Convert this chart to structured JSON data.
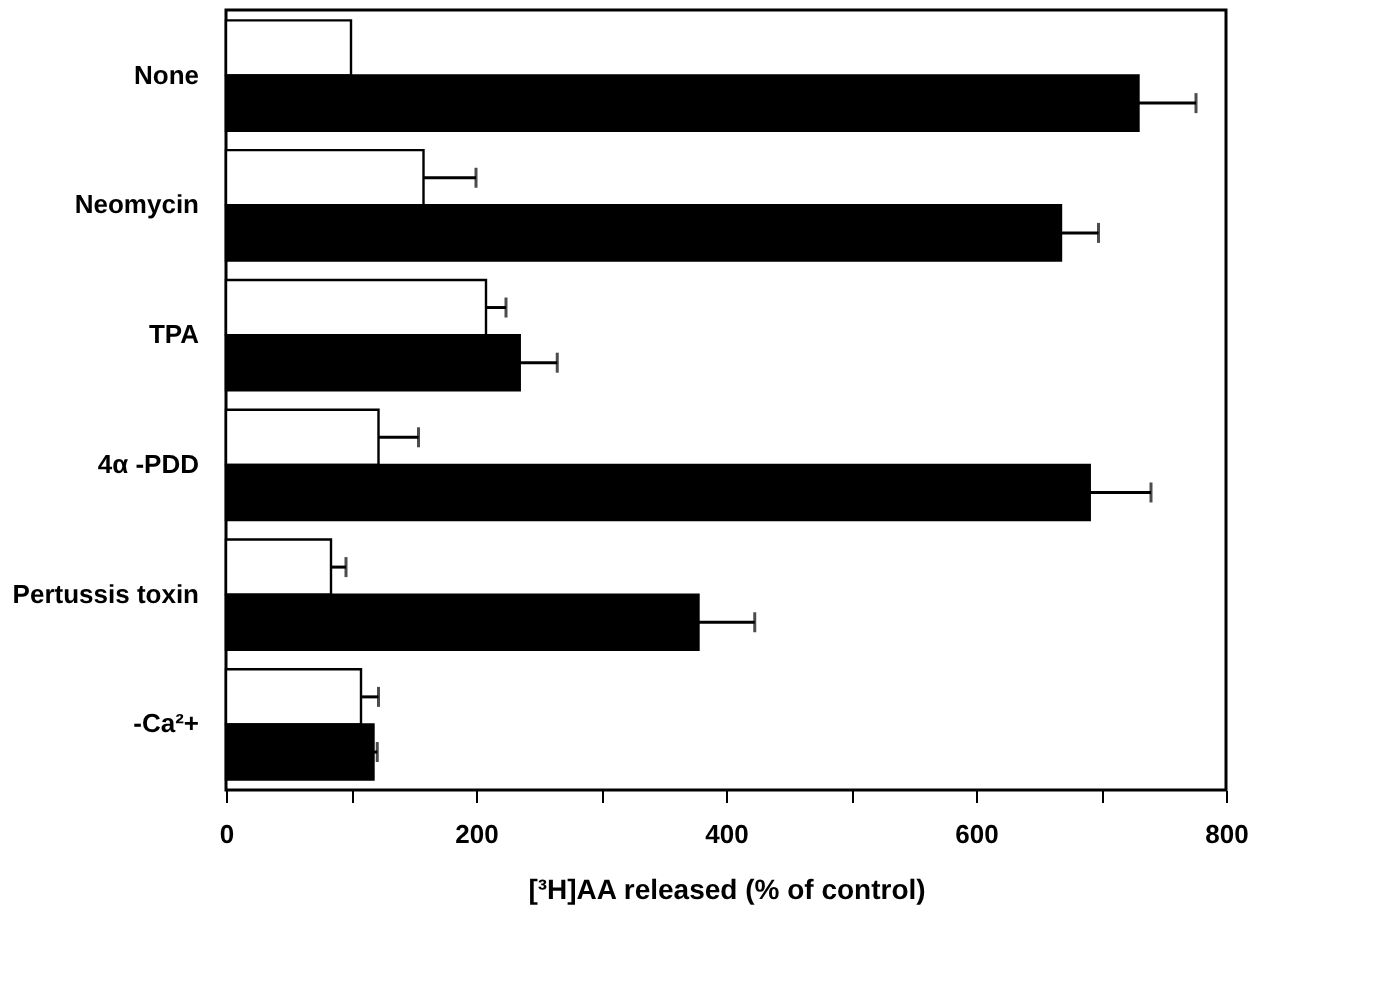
{
  "chart_data": {
    "type": "bar",
    "orientation": "horizontal",
    "categories": [
      "None",
      "Neomycin",
      "TPA",
      "4α -PDD",
      "Pertussis toxin",
      "-Ca²+"
    ],
    "series": [
      {
        "color": "#ffffff",
        "values": [
          100,
          158,
          208,
          122,
          84,
          108
        ],
        "errors": [
          null,
          42,
          16,
          32,
          12,
          14
        ]
      },
      {
        "color": "#000000",
        "values": [
          730,
          668,
          235,
          691,
          378,
          118
        ],
        "errors": [
          46,
          30,
          30,
          49,
          45,
          3
        ]
      }
    ],
    "xlabel": "[³H]AA released (% of control)",
    "xlim": [
      0,
      800
    ],
    "xticks": [
      0,
      {
        "value": 100,
        "label": null
      },
      200,
      {
        "value": 300,
        "label": null
      },
      400,
      {
        "value": 500,
        "label": null
      },
      600,
      {
        "value": 700,
        "label": null
      },
      800
    ],
    "grid": false,
    "legend": false
  }
}
